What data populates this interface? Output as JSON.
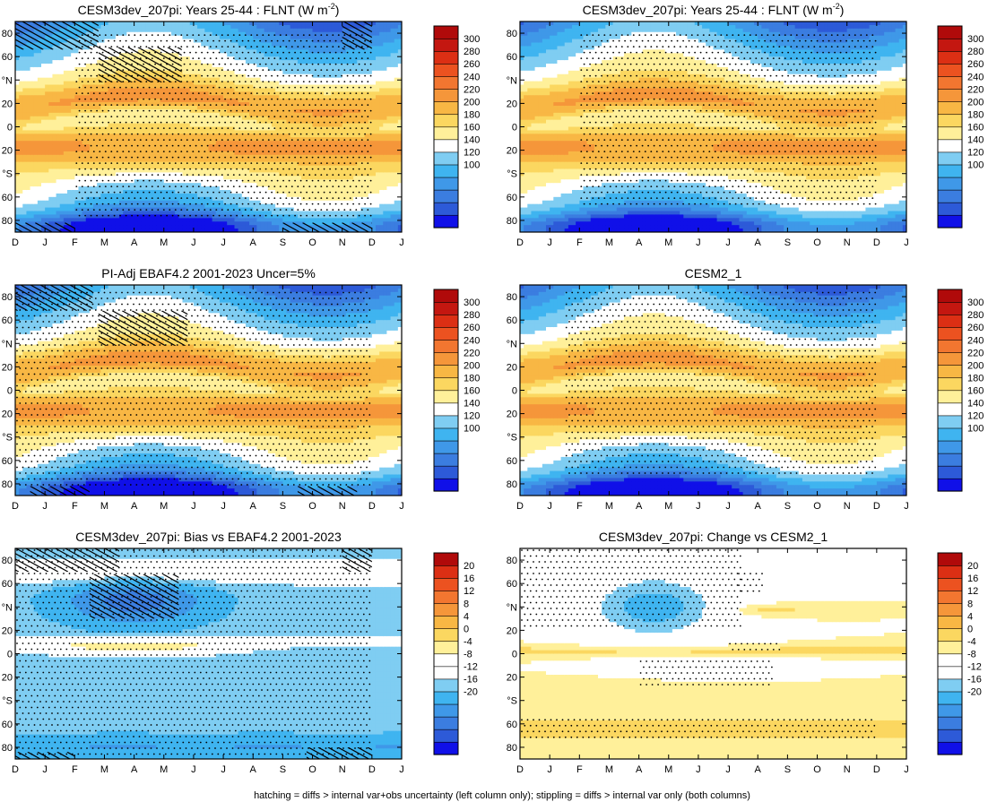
{
  "chart_data": [
    {
      "type": "heatmap",
      "title": "CESM3dev_207pi: Years 25-44 : FLNT (W m",
      "title_superscript": "-2",
      "title_suffix": ")",
      "field": "olr",
      "hatching": true,
      "hatch_regions": [
        {
          "m0": 0,
          "m1": 2.8,
          "l0": 66,
          "l1": 90
        },
        {
          "m0": 2.8,
          "m1": 5.6,
          "l0": 38,
          "l1": 68
        },
        {
          "m0": 0,
          "m1": 2,
          "l0": -90,
          "l1": -82
        },
        {
          "m0": 9,
          "m1": 12,
          "l0": -90,
          "l1": -82
        },
        {
          "m0": 11,
          "m1": 12,
          "l0": 66,
          "l1": 90
        }
      ],
      "stipple_regions": [
        {
          "m0": 2,
          "m1": 12,
          "l0": -80,
          "l1": 80
        }
      ]
    },
    {
      "type": "heatmap",
      "title": "CESM3dev_207pi: Years 25-44 : FLNT (W m",
      "title_superscript": "-2",
      "title_suffix": ")",
      "field": "olr",
      "hatching": false,
      "hatch_regions": [],
      "stipple_regions": [
        {
          "m0": 2,
          "m1": 12,
          "l0": -70,
          "l1": 80
        }
      ]
    },
    {
      "type": "heatmap",
      "title": "PI-Adj EBAF4.2 2001-2023 Uncer=5%",
      "title_superscript": "",
      "title_suffix": "",
      "field": "olr",
      "hatching": true,
      "hatch_regions": [
        {
          "m0": 0,
          "m1": 2.6,
          "l0": 68,
          "l1": 90
        },
        {
          "m0": 2.8,
          "m1": 5.8,
          "l0": 38,
          "l1": 68
        },
        {
          "m0": 0.5,
          "m1": 2.5,
          "l0": -90,
          "l1": -82
        },
        {
          "m0": 9.5,
          "m1": 11.5,
          "l0": -90,
          "l1": -82
        }
      ],
      "stipple_regions": [
        {
          "m0": 0,
          "m1": 12,
          "l0": -85,
          "l1": 85
        }
      ]
    },
    {
      "type": "heatmap",
      "title": "CESM2_1",
      "title_superscript": "",
      "title_suffix": "",
      "field": "olr",
      "hatching": false,
      "hatch_regions": [],
      "stipple_regions": [
        {
          "m0": 1.5,
          "m1": 12,
          "l0": -75,
          "l1": 85
        }
      ]
    },
    {
      "type": "heatmap",
      "title": "CESM3dev_207pi: Bias vs EBAF4.2 2001-2023",
      "title_superscript": "",
      "title_suffix": "",
      "field": "bias",
      "hatching": true,
      "hatch_regions": [
        {
          "m0": 0,
          "m1": 3.5,
          "l0": 70,
          "l1": 90
        },
        {
          "m0": 2.5,
          "m1": 5.5,
          "l0": 30,
          "l1": 68
        },
        {
          "m0": 9.8,
          "m1": 12,
          "l0": -90,
          "l1": -80
        },
        {
          "m0": 0,
          "m1": 2,
          "l0": -90,
          "l1": -84
        },
        {
          "m0": 11,
          "m1": 12,
          "l0": 70,
          "l1": 90
        }
      ],
      "stipple_regions": [
        {
          "m0": 0,
          "m1": 12,
          "l0": -90,
          "l1": 90
        }
      ]
    },
    {
      "type": "heatmap",
      "title": "CESM3dev_207pi: Change vs CESM2_1",
      "title_superscript": "",
      "title_suffix": "",
      "field": "change",
      "hatching": false,
      "hatch_regions": [],
      "stipple_regions": [
        {
          "m0": 0,
          "m1": 7.5,
          "l0": 20,
          "l1": 90
        },
        {
          "m0": 4,
          "m1": 8.5,
          "l0": -30,
          "l1": -5
        },
        {
          "m0": 0,
          "m1": 12,
          "l0": -75,
          "l1": -55
        },
        {
          "m0": 7,
          "m1": 8.8,
          "l0": 2,
          "l1": 10
        },
        {
          "m0": 7.3,
          "m1": 8.2,
          "l0": 50,
          "l1": 70
        }
      ]
    }
  ],
  "axes": {
    "x_tick_labels": [
      "D",
      "J",
      "F",
      "M",
      "A",
      "M",
      "J",
      "J",
      "A",
      "S",
      "O",
      "N",
      "D",
      "J"
    ],
    "y_ticks": [
      {
        "lat": 80,
        "label": "80"
      },
      {
        "lat": 60,
        "label": "60"
      },
      {
        "lat": 40,
        "label": "°N"
      },
      {
        "lat": 20,
        "label": "20"
      },
      {
        "lat": 0,
        "label": "0"
      },
      {
        "lat": -20,
        "label": "20"
      },
      {
        "lat": -40,
        "label": "°S"
      },
      {
        "lat": -60,
        "label": "60"
      },
      {
        "lat": -80,
        "label": "80"
      }
    ],
    "x_range_months": [
      0,
      13
    ],
    "y_range_deg": [
      -90,
      90
    ]
  },
  "colorbars": {
    "olr": {
      "labels": [
        "300",
        "280",
        "260",
        "240",
        "220",
        "200",
        "180",
        "160",
        "140",
        "120",
        "100"
      ],
      "min": 90,
      "max": 310,
      "step": 10
    },
    "anomaly": {
      "labels": [
        "20",
        "16",
        "12",
        "8",
        "4",
        "0",
        "-4",
        "-8",
        "-12",
        "-16",
        "-20"
      ],
      "min": -22,
      "max": 22,
      "step": 2
    }
  },
  "colors": {
    "olr": [
      "#1010e8",
      "#2d5ad8",
      "#3b7de0",
      "#3f98e8",
      "#3fb4f0",
      "#7fcdf2",
      "#ffffff",
      "#fff09a",
      "#fbd760",
      "#f8b744",
      "#f5963a",
      "#f27630",
      "#ec5220",
      "#dc2f14",
      "#c41710",
      "#b00a0a"
    ],
    "anomaly": [
      "#1010e8",
      "#2d5ad8",
      "#3b7de0",
      "#3f98e8",
      "#3fb4f0",
      "#7fcdf2",
      "#ffffff",
      "#ffffff",
      "#fff09a",
      "#fbd760",
      "#f8b744",
      "#f5963a",
      "#f27630",
      "#ec5220",
      "#dc2f14",
      "#b00a0a"
    ]
  },
  "footer": "hatching = diffs > internal var+obs uncertainty (left column only); stippling = diffs > internal var only (both columns)"
}
